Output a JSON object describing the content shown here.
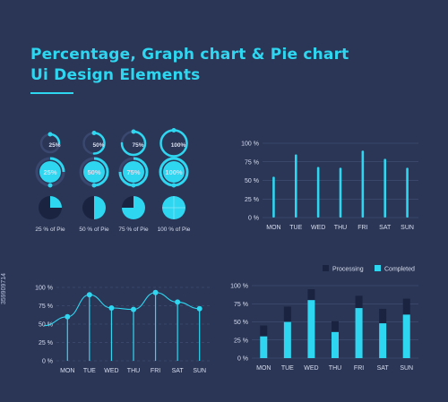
{
  "header": {
    "title_line1": "Percentage, Graph chart & Pie chart",
    "title_line2": "Ui Design Elements"
  },
  "colors": {
    "accent": "#2fd6f0",
    "background": "#2b3656",
    "dark_segment": "#1a2340"
  },
  "progress_widgets": {
    "values": [
      25,
      50,
      75,
      100
    ],
    "ring_labels": [
      "25%",
      "50%",
      "75%",
      "100%"
    ],
    "pie_labels": [
      "25 % of Pie",
      "50 % of Pie",
      "75 % of Pie",
      "100 % of Pie"
    ]
  },
  "side_id": "359909714",
  "chart_data": [
    {
      "type": "bar",
      "categories": [
        "MON",
        "TUE",
        "WED",
        "THU",
        "FRI",
        "SAT",
        "SUN"
      ],
      "values": [
        55,
        85,
        68,
        67,
        90,
        79,
        67
      ],
      "ylim": [
        0,
        100
      ],
      "y_ticks": [
        "0 %",
        "25 %",
        "50 %",
        "75 %",
        "100 %"
      ]
    },
    {
      "type": "line",
      "categories": [
        "MON",
        "TUE",
        "WED",
        "THU",
        "FRI",
        "SAT",
        "SUN"
      ],
      "values": [
        60,
        90,
        72,
        70,
        93,
        80,
        71
      ],
      "ylim": [
        0,
        100
      ],
      "y_ticks": [
        "0 %",
        "25 %",
        "50 %",
        "75 %",
        "100 %"
      ]
    },
    {
      "type": "bar",
      "categories": [
        "MON",
        "TUE",
        "WED",
        "THU",
        "FRI",
        "SAT",
        "SUN"
      ],
      "series": [
        {
          "name": "Completed",
          "values": [
            30,
            50,
            80,
            36,
            69,
            48,
            60
          ]
        },
        {
          "name": "Processing",
          "values": [
            15,
            21,
            15,
            15,
            17,
            20,
            22
          ]
        }
      ],
      "ylim": [
        0,
        100
      ],
      "y_ticks": [
        "0 %",
        "25 %",
        "50 %",
        "75 %",
        "100 %"
      ],
      "legend": [
        "Processing",
        "Completed"
      ]
    }
  ]
}
